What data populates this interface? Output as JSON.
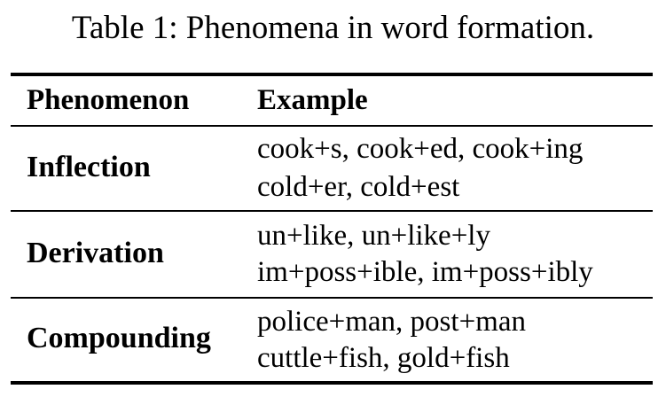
{
  "caption": "Table 1: Phenomena in word formation.",
  "table": {
    "headers": {
      "phenomenon": "Phenomenon",
      "example": "Example"
    },
    "rows": [
      {
        "phenomenon": "Inflection",
        "examples": [
          "cook+s, cook+ed, cook+ing",
          "cold+er, cold+est"
        ]
      },
      {
        "phenomenon": "Derivation",
        "examples": [
          "un+like, un+like+ly",
          "im+poss+ible, im+poss+ibly"
        ]
      },
      {
        "phenomenon": "Compounding",
        "examples": [
          "police+man, post+man",
          "cuttle+fish, gold+fish"
        ]
      }
    ]
  }
}
